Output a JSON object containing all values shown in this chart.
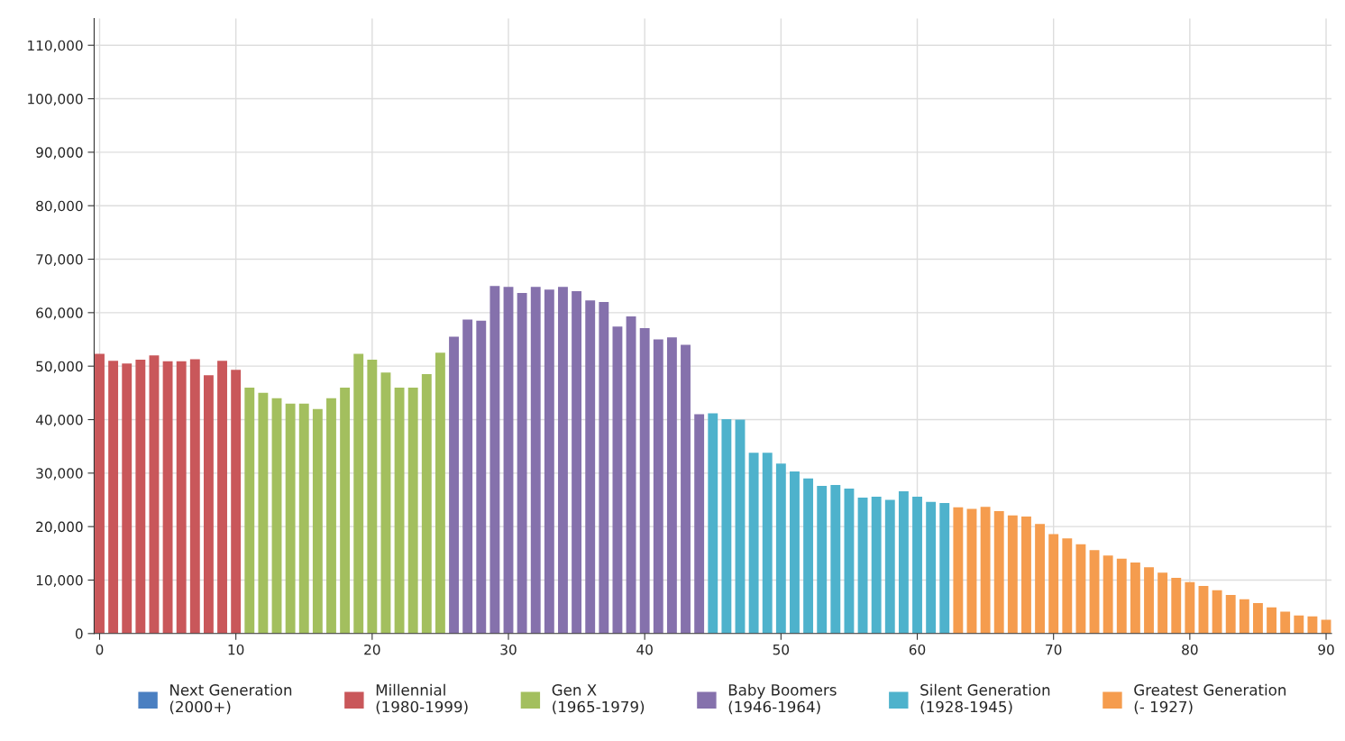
{
  "chart_data": {
    "type": "bar",
    "x": [
      0,
      1,
      2,
      3,
      4,
      5,
      6,
      7,
      8,
      9,
      10,
      11,
      12,
      13,
      14,
      15,
      16,
      17,
      18,
      19,
      20,
      21,
      22,
      23,
      24,
      25,
      26,
      27,
      28,
      29,
      30,
      31,
      32,
      33,
      34,
      35,
      36,
      37,
      38,
      39,
      40,
      41,
      42,
      43,
      44,
      45,
      46,
      47,
      48,
      49,
      50,
      51,
      52,
      53,
      54,
      55,
      56,
      57,
      58,
      59,
      60,
      61,
      62,
      63,
      64,
      65,
      66,
      67,
      68,
      69,
      70,
      71,
      72,
      73,
      74,
      75,
      76,
      77,
      78,
      79,
      80,
      81,
      82,
      83,
      84,
      85,
      86,
      87,
      88,
      89,
      90
    ],
    "xlim": [
      -0.4,
      90.4
    ],
    "xticks": [
      0,
      10,
      20,
      30,
      40,
      50,
      60,
      70,
      80,
      90
    ],
    "ylim": [
      0,
      115000
    ],
    "yticks": [
      {
        "value": 0,
        "label": "0"
      },
      {
        "value": 10000,
        "label": "10,000"
      },
      {
        "value": 20000,
        "label": "20,000"
      },
      {
        "value": 30000,
        "label": "30,000"
      },
      {
        "value": 40000,
        "label": "40,000"
      },
      {
        "value": 50000,
        "label": "50,000"
      },
      {
        "value": 60000,
        "label": "60,000"
      },
      {
        "value": 70000,
        "label": "70,000"
      },
      {
        "value": 80000,
        "label": "80,000"
      },
      {
        "value": 90000,
        "label": "90,000"
      },
      {
        "value": 100000,
        "label": "100,000"
      },
      {
        "value": 110000,
        "label": "110,000"
      }
    ],
    "grid": true,
    "legend": "bottom",
    "series": [
      {
        "name": "Next Generation\n(2000+)",
        "color": "#4a7fc1",
        "values": [
          null,
          null,
          null,
          null,
          null,
          null,
          null,
          null,
          null,
          null,
          null,
          null,
          null,
          null,
          null,
          null,
          null,
          null,
          null,
          null,
          null,
          null,
          null,
          null,
          null,
          null,
          null,
          null,
          null,
          null,
          null,
          null,
          null,
          null,
          null,
          null,
          null,
          null,
          null,
          null,
          null,
          null,
          null,
          null,
          null,
          null,
          null,
          null,
          null,
          null,
          null,
          null,
          null,
          null,
          null,
          null,
          null,
          null,
          null,
          null,
          null,
          null,
          null,
          null,
          null,
          null,
          null,
          null,
          null,
          null,
          null,
          null,
          null,
          null,
          null,
          null,
          null,
          null,
          null,
          null,
          null,
          null,
          null,
          null,
          null,
          null,
          null,
          null,
          null,
          null,
          null
        ]
      },
      {
        "name": "Millennial\n(1980-1999)",
        "color": "#c9575a",
        "values": [
          52300,
          51000,
          50500,
          51200,
          52000,
          50900,
          50900,
          51300,
          48300,
          51000,
          49300,
          null,
          null,
          null,
          null,
          null,
          null,
          null,
          null,
          null,
          null,
          null,
          null,
          null,
          null,
          null,
          null,
          null,
          null,
          null,
          null,
          null,
          null,
          null,
          null,
          null,
          null,
          null,
          null,
          null,
          null,
          null,
          null,
          null,
          null,
          null,
          null,
          null,
          null,
          null,
          null,
          null,
          null,
          null,
          null,
          null,
          null,
          null,
          null,
          null,
          null,
          null,
          null,
          null,
          null,
          null,
          null,
          null,
          null,
          null,
          null,
          null,
          null,
          null,
          null,
          null,
          null,
          null,
          null,
          null,
          null,
          null,
          null,
          null,
          null,
          null,
          null,
          null,
          null,
          null,
          null
        ]
      },
      {
        "name": "Gen X\n(1965-1979)",
        "color": "#a3bf5e",
        "values": [
          null,
          null,
          null,
          null,
          null,
          null,
          null,
          null,
          null,
          null,
          null,
          46000,
          45000,
          44000,
          43000,
          43000,
          42000,
          44000,
          46000,
          52300,
          51200,
          48800,
          46000,
          46000,
          48500,
          52500,
          null,
          null,
          null,
          null,
          null,
          null,
          null,
          null,
          null,
          null,
          null,
          null,
          null,
          null,
          null,
          null,
          null,
          null,
          null,
          null,
          null,
          null,
          null,
          null,
          null,
          null,
          null,
          null,
          null,
          null,
          null,
          null,
          null,
          null,
          null,
          null,
          null,
          null,
          null,
          null,
          null,
          null,
          null,
          null,
          null,
          null,
          null,
          null,
          null,
          null,
          null,
          null,
          null,
          null,
          null,
          null,
          null,
          null,
          null,
          null,
          null,
          null,
          null,
          null,
          null
        ]
      },
      {
        "name": "Baby Boomers\n(1946-1964)",
        "color": "#8571ac",
        "values": [
          null,
          null,
          null,
          null,
          null,
          null,
          null,
          null,
          null,
          null,
          null,
          null,
          null,
          null,
          null,
          null,
          null,
          null,
          null,
          null,
          null,
          null,
          null,
          null,
          null,
          null,
          55500,
          58700,
          58500,
          65000,
          64800,
          63700,
          64800,
          64300,
          64800,
          64000,
          62300,
          62000,
          57400,
          59300,
          57100,
          55000,
          55400,
          54000,
          41000,
          null,
          null,
          null,
          null,
          null,
          null,
          null,
          null,
          null,
          null,
          null,
          null,
          null,
          null,
          null,
          null,
          null,
          null,
          null,
          null,
          null,
          null,
          null,
          null,
          null,
          null,
          null,
          null,
          null,
          null,
          null,
          null,
          null,
          null,
          null,
          null,
          null,
          null,
          null,
          null,
          null,
          null,
          null,
          null,
          null,
          null
        ]
      },
      {
        "name": "Silent Generation\n(1928-1945)",
        "color": "#4eb2cc",
        "values": [
          null,
          null,
          null,
          null,
          null,
          null,
          null,
          null,
          null,
          null,
          null,
          null,
          null,
          null,
          null,
          null,
          null,
          null,
          null,
          null,
          null,
          null,
          null,
          null,
          null,
          null,
          null,
          null,
          null,
          null,
          null,
          null,
          null,
          null,
          null,
          null,
          null,
          null,
          null,
          null,
          null,
          null,
          null,
          null,
          null,
          41200,
          40100,
          40000,
          33800,
          33800,
          31800,
          30300,
          29000,
          27600,
          27800,
          27100,
          25400,
          25600,
          25000,
          26600,
          25600,
          24600,
          24400,
          null,
          null,
          null,
          null,
          null,
          null,
          null,
          null,
          null,
          null,
          null,
          null,
          null,
          null,
          null,
          null,
          null,
          null,
          null,
          null,
          null,
          null,
          null,
          null,
          null,
          null,
          null,
          null
        ]
      },
      {
        "name": "Greatest Generation\n(- 1927)",
        "color": "#f59c4e",
        "values": [
          null,
          null,
          null,
          null,
          null,
          null,
          null,
          null,
          null,
          null,
          null,
          null,
          null,
          null,
          null,
          null,
          null,
          null,
          null,
          null,
          null,
          null,
          null,
          null,
          null,
          null,
          null,
          null,
          null,
          null,
          null,
          null,
          null,
          null,
          null,
          null,
          null,
          null,
          null,
          null,
          null,
          null,
          null,
          null,
          null,
          null,
          null,
          null,
          null,
          null,
          null,
          null,
          null,
          null,
          null,
          null,
          null,
          null,
          null,
          null,
          null,
          null,
          null,
          23600,
          23300,
          23700,
          22900,
          22100,
          21900,
          20500,
          18600,
          17800,
          16700,
          15600,
          14600,
          14000,
          13300,
          12400,
          11400,
          10400,
          9600,
          8900,
          8100,
          7200,
          6400,
          5700,
          4900,
          4100,
          3400,
          3200,
          2600
        ]
      }
    ]
  }
}
